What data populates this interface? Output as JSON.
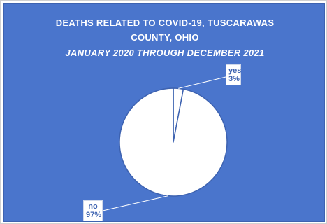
{
  "chart_data": {
    "type": "pie",
    "title_lines": [
      "DEATHS RELATED TO COVID-19,  TUSCARAWAS",
      "COUNTY,  OHIO",
      "JANUARY 2020 THROUGH DECEMBER 2021"
    ],
    "slices": [
      {
        "label": "yes",
        "percent_label": "3%",
        "value": 3
      },
      {
        "label": "no",
        "percent_label": "97%",
        "value": 97
      }
    ],
    "colors": {
      "background": "#4a75cc",
      "slice_fill": "#ffffff",
      "slice_stroke": "#3d62b0",
      "label_text": "#3d62b0"
    },
    "legend": "none"
  }
}
